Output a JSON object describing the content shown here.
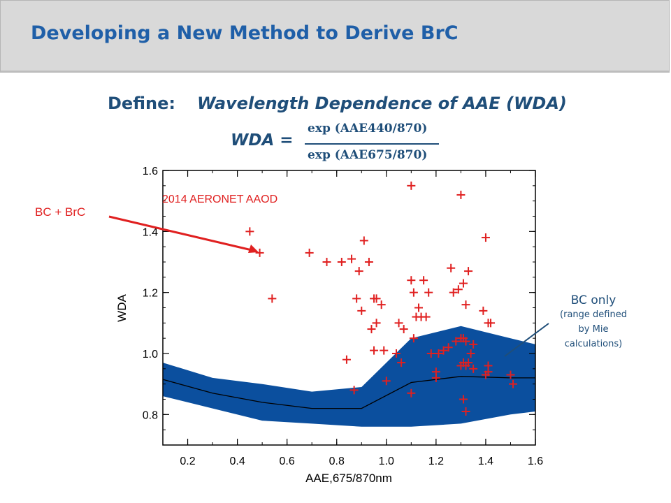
{
  "slide": {
    "title": "Developing a New Method to Derive BrC",
    "define_label": "Define:",
    "define_title": "Wavelength Dependence of AAE (WDA)",
    "formula_lhs": "WDA =",
    "formula_numerator": "exp (AAE440/870)",
    "formula_denominator": "exp (AAE675/870)"
  },
  "annotations": {
    "bc_brc": "BC + BrC",
    "bc_only": "BC only",
    "bc_only_note": [
      "(range defined",
      "by Mie",
      "calculations)"
    ]
  },
  "colors": {
    "title": "#1f5fa8",
    "text": "#1f4e79",
    "points": "#e02020",
    "band": "#0b4f9e"
  },
  "chart_data": {
    "type": "scatter",
    "title": "",
    "xlabel": "AAE,675/870nm",
    "ylabel": "WDA",
    "xlim": [
      0.1,
      1.6
    ],
    "ylim": [
      0.7,
      1.6
    ],
    "xticks": [
      "0.2",
      "0.4",
      "0.6",
      "0.8",
      "1.0",
      "1.2",
      "1.4",
      "1.6"
    ],
    "yticks": [
      "0.8",
      "1.0",
      "1.2",
      "1.4",
      "1.6"
    ],
    "legend": "2014 AERONET AAOD",
    "grid": false,
    "series": [
      {
        "name": "2014 AERONET AAOD",
        "type": "scatter",
        "marker": "plus",
        "x": [
          0.45,
          0.49,
          0.54,
          0.69,
          0.76,
          0.82,
          0.86,
          0.89,
          0.91,
          0.93,
          0.95,
          0.96,
          0.98,
          0.88,
          0.9,
          0.94,
          0.96,
          0.95,
          0.99,
          0.84,
          0.87,
          1.0,
          1.04,
          1.05,
          1.06,
          1.07,
          1.1,
          1.1,
          1.11,
          1.12,
          1.13,
          1.14,
          1.15,
          1.16,
          1.17,
          1.18,
          1.1,
          1.11,
          1.2,
          1.2,
          1.21,
          1.23,
          1.25,
          1.26,
          1.27,
          1.28,
          1.29,
          1.3,
          1.3,
          1.31,
          1.31,
          1.32,
          1.32,
          1.33,
          1.34,
          1.35,
          1.33,
          1.35,
          1.3,
          1.31,
          1.32,
          1.31,
          1.32,
          1.39,
          1.4,
          1.41,
          1.42,
          1.41,
          1.41,
          1.5,
          1.51,
          1.4
        ],
        "y": [
          1.4,
          1.33,
          1.18,
          1.33,
          1.3,
          1.3,
          1.31,
          1.27,
          1.37,
          1.3,
          1.18,
          1.18,
          1.16,
          1.18,
          1.14,
          1.08,
          1.1,
          1.01,
          1.01,
          0.98,
          0.88,
          0.91,
          1.0,
          1.1,
          0.97,
          1.08,
          1.55,
          1.24,
          1.2,
          1.12,
          1.15,
          1.12,
          1.24,
          1.12,
          1.2,
          1.0,
          0.87,
          1.05,
          0.92,
          0.94,
          1.0,
          1.01,
          1.02,
          1.28,
          1.2,
          1.04,
          1.21,
          1.52,
          1.05,
          1.05,
          1.23,
          1.04,
          1.16,
          1.27,
          1.0,
          1.03,
          0.97,
          0.95,
          0.96,
          0.97,
          0.96,
          0.85,
          0.81,
          1.14,
          1.38,
          1.1,
          1.1,
          0.96,
          0.94,
          0.93,
          0.9,
          0.93
        ]
      },
      {
        "name": "",
        "type": "band",
        "x": [
          0.1,
          0.3,
          0.5,
          0.7,
          0.9,
          1.1,
          1.3,
          1.5,
          1.6
        ],
        "upper": [
          0.97,
          0.92,
          0.9,
          0.875,
          0.89,
          1.05,
          1.09,
          1.05,
          1.03
        ],
        "lower": [
          0.86,
          0.82,
          0.78,
          0.77,
          0.76,
          0.76,
          0.77,
          0.8,
          0.81
        ]
      },
      {
        "name": "",
        "type": "line",
        "x": [
          0.1,
          0.3,
          0.5,
          0.7,
          0.9,
          1.1,
          1.3,
          1.5,
          1.6
        ],
        "y": [
          0.915,
          0.87,
          0.84,
          0.82,
          0.82,
          0.905,
          0.925,
          0.92,
          0.92
        ]
      }
    ]
  }
}
